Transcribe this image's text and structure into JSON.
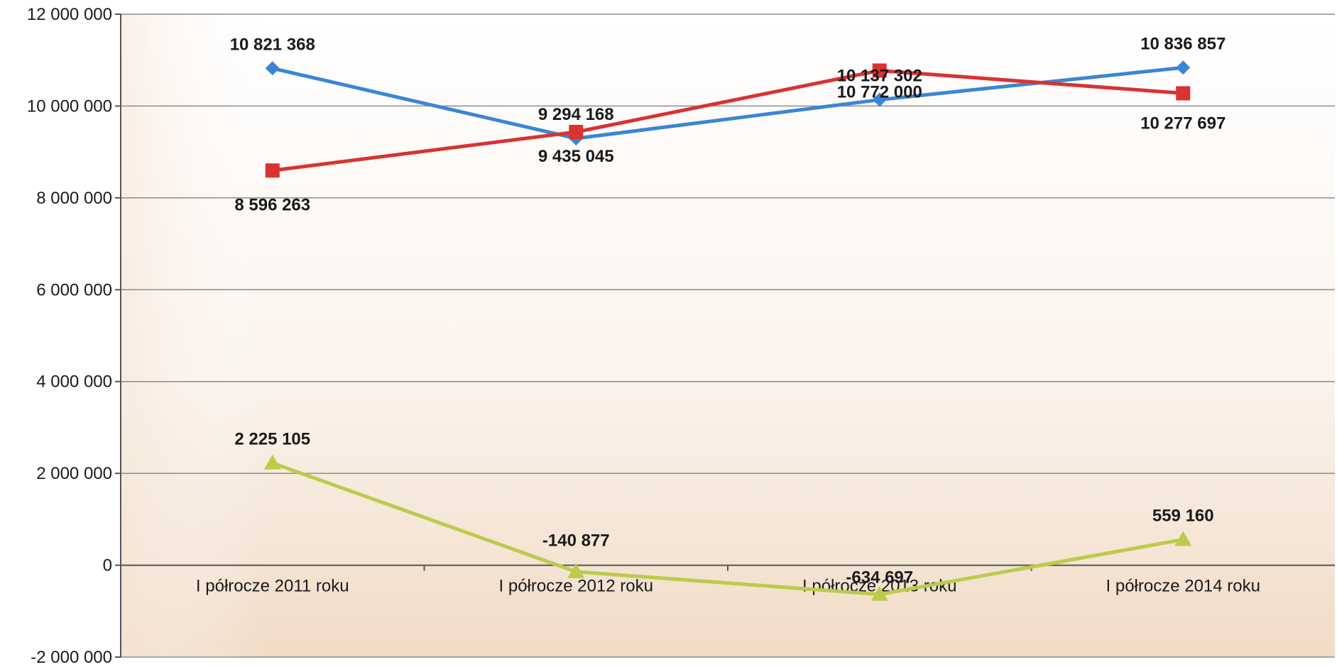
{
  "chart_data": {
    "type": "line",
    "title": "",
    "xlabel": "",
    "ylabel": "",
    "categories": [
      "I półrocze 2011 roku",
      "I półrocze 2012 roku",
      "I półrocze 2013 roku",
      "I półrocze 2014 roku"
    ],
    "ylim": [
      -2000000,
      12000000
    ],
    "yticks": [
      -2000000,
      0,
      2000000,
      4000000,
      6000000,
      8000000,
      10000000,
      12000000
    ],
    "ytick_labels": [
      "-2 000 000",
      "0",
      "2 000 000",
      "4 000 000",
      "6 000 000",
      "8 000 000",
      "10 000 000",
      "12 000 000"
    ],
    "grid": true,
    "legend": "none",
    "series": [
      {
        "color": "#3a86d4",
        "marker": "diamond",
        "values": [
          10821368,
          9294168,
          10137302,
          10836857
        ],
        "labels": [
          "10 821 368",
          "9 294 168",
          "10 137 302",
          "10 836 857"
        ]
      },
      {
        "color": "#d93232",
        "marker": "square",
        "values": [
          8596263,
          9435045,
          10772000,
          10277697
        ],
        "labels": [
          "8 596 263",
          "9 435 045",
          "10 772 000",
          "10 277 697"
        ]
      },
      {
        "color": "#bccb4a",
        "marker": "triangle",
        "values": [
          2225105,
          -140877,
          -634697,
          559160
        ],
        "labels": [
          "2 225 105",
          "-140 877",
          "-634 697",
          "559 160"
        ]
      }
    ]
  }
}
